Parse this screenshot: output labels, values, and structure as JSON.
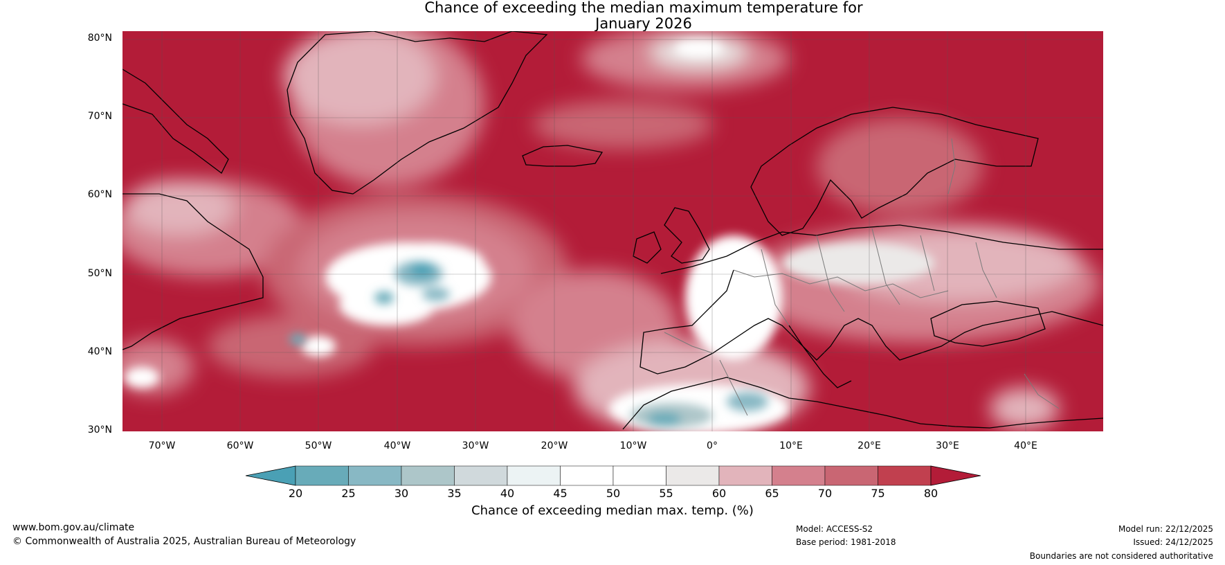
{
  "title": {
    "line1": "Chance of exceeding the median maximum temperature for",
    "line2": "January 2026"
  },
  "map": {
    "lat_labels": [
      "80°N",
      "70°N",
      "60°N",
      "50°N",
      "40°N",
      "30°N"
    ],
    "lon_labels": [
      "70°W",
      "60°W",
      "50°W",
      "40°W",
      "30°W",
      "20°W",
      "10°W",
      "0°",
      "10°E",
      "20°E",
      "30°E",
      "40°E"
    ],
    "extent": {
      "lon": [
        -75,
        50
      ],
      "lat": [
        30,
        81
      ]
    }
  },
  "colorbar": {
    "ticks": [
      "20",
      "25",
      "30",
      "35",
      "40",
      "45",
      "50",
      "55",
      "60",
      "65",
      "70",
      "75",
      "80"
    ],
    "label": "Chance of exceeding median max. temp. (%)",
    "colors": [
      "#4aa0b5",
      "#68abb9",
      "#88b8c4",
      "#adc6c9",
      "#d0d9dc",
      "#ecf3f4",
      "#ffffff",
      "#ffffff",
      "#ebe9e8",
      "#e2b4bb",
      "#d4808d",
      "#c96673",
      "#c1404f",
      "#b31c38"
    ]
  },
  "footer": {
    "url": "www.bom.gov.au/climate",
    "copyright": "© Commonwealth of Australia 2025, Australian Bureau of Meteorology",
    "model": "Model: ACCESS-S2",
    "base_period": "Base period: 1981-2018",
    "model_run": "Model run: 22/12/2025",
    "issued": "Issued: 24/12/2025",
    "disclaimer": "Boundaries are not considered authoritative"
  }
}
